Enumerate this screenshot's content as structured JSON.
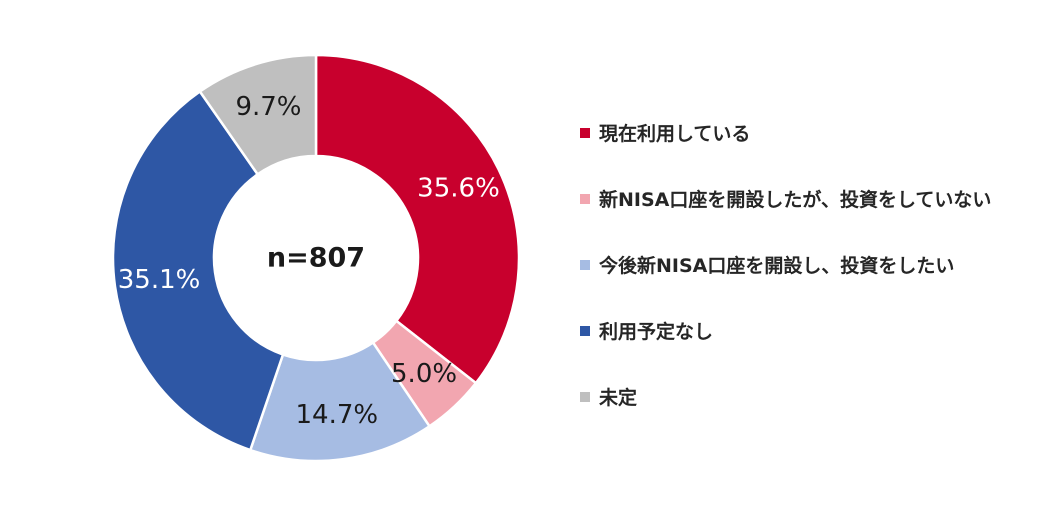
{
  "chart_data": {
    "type": "pie",
    "donut": true,
    "center_label": "n=807",
    "legend_position": "right",
    "slices": [
      {
        "label": "現在利用している",
        "value": 35.6,
        "display": "35.6%",
        "color": "#c8002d",
        "text_color": "#ffffff"
      },
      {
        "label": "新NISA口座を開設したが、投資をしていない",
        "value": 5.0,
        "display": "5.0%",
        "color": "#f2a6b0",
        "text_color": "#1a1a1a"
      },
      {
        "label": "今後新NISA口座を開設し、投資をしたい",
        "value": 14.7,
        "display": "14.7%",
        "color": "#a6bce3",
        "text_color": "#1a1a1a"
      },
      {
        "label": "利用予定なし",
        "value": 35.1,
        "display": "35.1%",
        "color": "#2e57a5",
        "text_color": "#ffffff"
      },
      {
        "label": "未定",
        "value": 9.7,
        "display": "9.7%",
        "color": "#bfbfbf",
        "text_color": "#1a1a1a"
      }
    ]
  }
}
